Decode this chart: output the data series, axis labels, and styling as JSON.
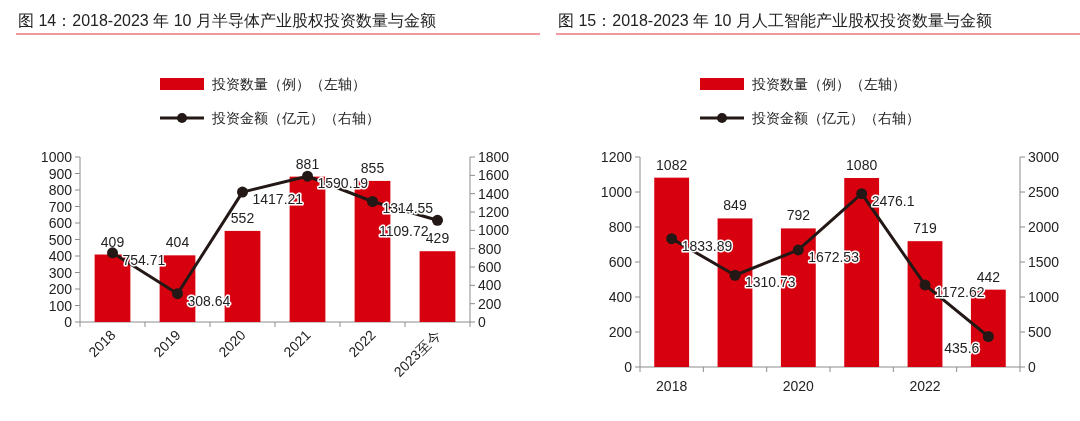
{
  "chart_data": [
    {
      "type": "bar",
      "title": "图 14：2018-2023 年 10 月半导体产业股权投资数量与金额",
      "categories": [
        "2018",
        "2019",
        "2020",
        "2021",
        "2022",
        "2023至今"
      ],
      "series": [
        {
          "name": "投资数量（例）（左轴）",
          "color": "#d7000f",
          "values": [
            409,
            404,
            552,
            881,
            855,
            429
          ]
        },
        {
          "name": "投资金额（亿元）（右轴）",
          "type": "line",
          "axis": "y2",
          "color": "#231815",
          "values": [
            754.71,
            308.64,
            1417.21,
            1590.19,
            1314.55,
            1109.72
          ]
        }
      ],
      "ylim": [
        0,
        1000
      ],
      "yticks": [
        0,
        100,
        200,
        300,
        400,
        500,
        600,
        700,
        800,
        900,
        1000
      ],
      "y2lim": [
        0,
        1800
      ],
      "y2ticks": [
        0,
        200,
        400,
        600,
        800,
        1000,
        1200,
        1400,
        1600,
        1800
      ],
      "data_labels": true,
      "legend": "top",
      "marker": "circle",
      "grid": false
    },
    {
      "type": "bar",
      "title": "图 15：2018-2023 年 10 月人工智能产业股权投资数量与金额",
      "categories": [
        "2018",
        null,
        "2020",
        null,
        "2022",
        null
      ],
      "series": [
        {
          "name": "投资数量（例）（左轴）",
          "color": "#d7000f",
          "values": [
            1082,
            849,
            792,
            1080,
            719,
            442
          ]
        },
        {
          "name": "投资金额（亿元）（右轴）",
          "type": "line",
          "axis": "y2",
          "color": "#231815",
          "values": [
            1833.89,
            1310.73,
            1672.53,
            2476.1,
            1172.62,
            435.6
          ]
        }
      ],
      "ylim": [
        0,
        1200
      ],
      "yticks": [
        0,
        200,
        400,
        600,
        800,
        1000,
        1200
      ],
      "y2lim": [
        0,
        3000
      ],
      "y2ticks": [
        0,
        500,
        1000,
        1500,
        2000,
        2500,
        3000
      ],
      "data_labels": true,
      "legend": "top",
      "marker": "circle",
      "grid": false
    }
  ]
}
